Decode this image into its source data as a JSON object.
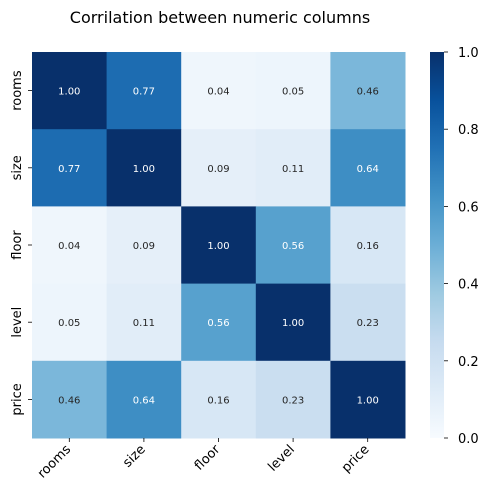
{
  "chart_data": {
    "type": "heatmap",
    "title": "Corrilation between numeric columns",
    "x_categories": [
      "rooms",
      "size",
      "floor",
      "level",
      "price"
    ],
    "y_categories": [
      "rooms",
      "size",
      "floor",
      "level",
      "price"
    ],
    "values": [
      [
        1.0,
        0.77,
        0.04,
        0.05,
        0.46
      ],
      [
        0.77,
        1.0,
        0.09,
        0.11,
        0.64
      ],
      [
        0.04,
        0.09,
        1.0,
        0.56,
        0.16
      ],
      [
        0.05,
        0.11,
        0.56,
        1.0,
        0.23
      ],
      [
        0.46,
        0.64,
        0.16,
        0.23,
        1.0
      ]
    ],
    "annotations": [
      [
        "1.00",
        "0.77",
        "0.04",
        "0.05",
        "0.46"
      ],
      [
        "0.77",
        "1.00",
        "0.09",
        "0.11",
        "0.64"
      ],
      [
        "0.04",
        "0.09",
        "1.00",
        "0.56",
        "0.16"
      ],
      [
        "0.05",
        "0.11",
        "0.56",
        "1.00",
        "0.23"
      ],
      [
        "0.46",
        "0.64",
        "0.16",
        "0.23",
        "1.00"
      ]
    ],
    "colormap": "Blues",
    "vmin": 0.0,
    "vmax": 1.0,
    "colorbar_ticks": [
      "0.0",
      "0.2",
      "0.4",
      "0.6",
      "0.8",
      "1.0"
    ],
    "x_tick_rotation": "45 degrees"
  }
}
